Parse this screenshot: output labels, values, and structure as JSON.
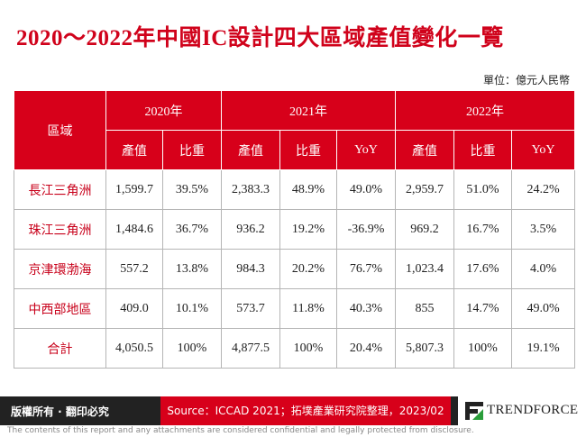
{
  "title": "2020～2022年中國IC設計四大區域產值變化一覽",
  "unit": "單位：億元人民幣",
  "table": {
    "region_header": "區域",
    "years": [
      "2020年",
      "2021年",
      "2022年"
    ],
    "subheaders": [
      "產值",
      "比重",
      "產值",
      "比重",
      "YoY",
      "產值",
      "比重",
      "YoY"
    ],
    "rows": [
      [
        "長江三角洲",
        "1,599.7",
        "39.5%",
        "2,383.3",
        "48.9%",
        "49.0%",
        "2,959.7",
        "51.0%",
        "24.2%"
      ],
      [
        "珠江三角洲",
        "1,484.6",
        "36.7%",
        "936.2",
        "19.2%",
        "-36.9%",
        "969.2",
        "16.7%",
        "3.5%"
      ],
      [
        "京津環渤海",
        "557.2",
        "13.8%",
        "984.3",
        "20.2%",
        "76.7%",
        "1,023.4",
        "17.6%",
        "4.0%"
      ],
      [
        "中西部地區",
        "409.0",
        "10.1%",
        "573.7",
        "11.8%",
        "40.3%",
        "855",
        "14.7%",
        "49.0%"
      ],
      [
        "合計",
        "4,050.5",
        "100%",
        "4,877.5",
        "100%",
        "20.4%",
        "5,807.3",
        "100%",
        "19.1%"
      ]
    ]
  },
  "footer": {
    "copyright": "版權所有 · 翻印必究",
    "source": "Source：ICCAD 2021；拓墣產業研究院整理，2023/02",
    "logo": "TRENDFORCE",
    "disclaimer": "The contents of this report and any attachments are considered confidential and legally protected from disclosure."
  }
}
